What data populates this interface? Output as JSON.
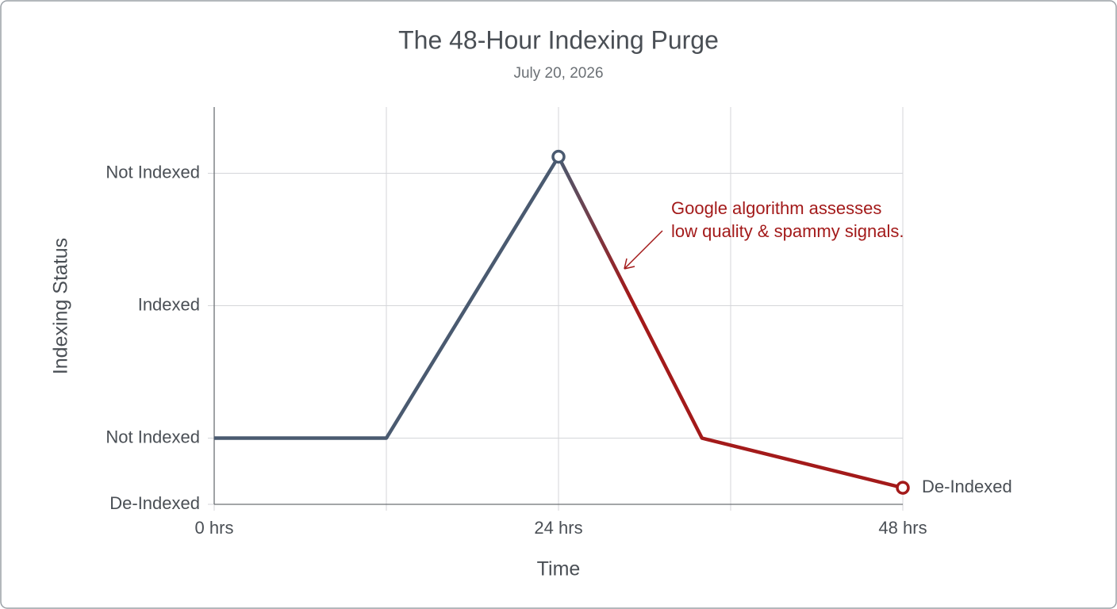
{
  "chart_data": {
    "type": "line",
    "title": "The 48-Hour Indexing Purge",
    "subtitle": "July 20, 2026",
    "x_label": "Time",
    "y_label": "Indexing Status",
    "x": [
      0,
      12,
      24,
      34,
      48
    ],
    "series": [
      {
        "values": [
          1,
          1,
          5.25,
          1,
          0.25
        ],
        "color": "#4a5a70",
        "end_color": "#a31a1a"
      }
    ],
    "xlim": [
      0,
      48
    ],
    "xticks": [
      {
        "value": 0,
        "label": "0 hrs"
      },
      {
        "value": 24,
        "label": "24 hrs"
      },
      {
        "value": 48,
        "label": "48 hrs"
      }
    ],
    "xminor": [
      12,
      36
    ],
    "ylim": [
      0,
      6
    ],
    "yticks": [
      {
        "value": 0,
        "label": "De-Indexed"
      },
      {
        "value": 1,
        "label": "Not Indexed"
      },
      {
        "value": 3,
        "label": "Indexed"
      },
      {
        "value": 5,
        "label": "Not Indexed"
      }
    ],
    "grid": true,
    "end_label": "De-Indexed",
    "annotation": {
      "lines": [
        "Google algorithm assesses",
        "low quality & spammy signals."
      ],
      "color": "#a31a1a"
    }
  }
}
